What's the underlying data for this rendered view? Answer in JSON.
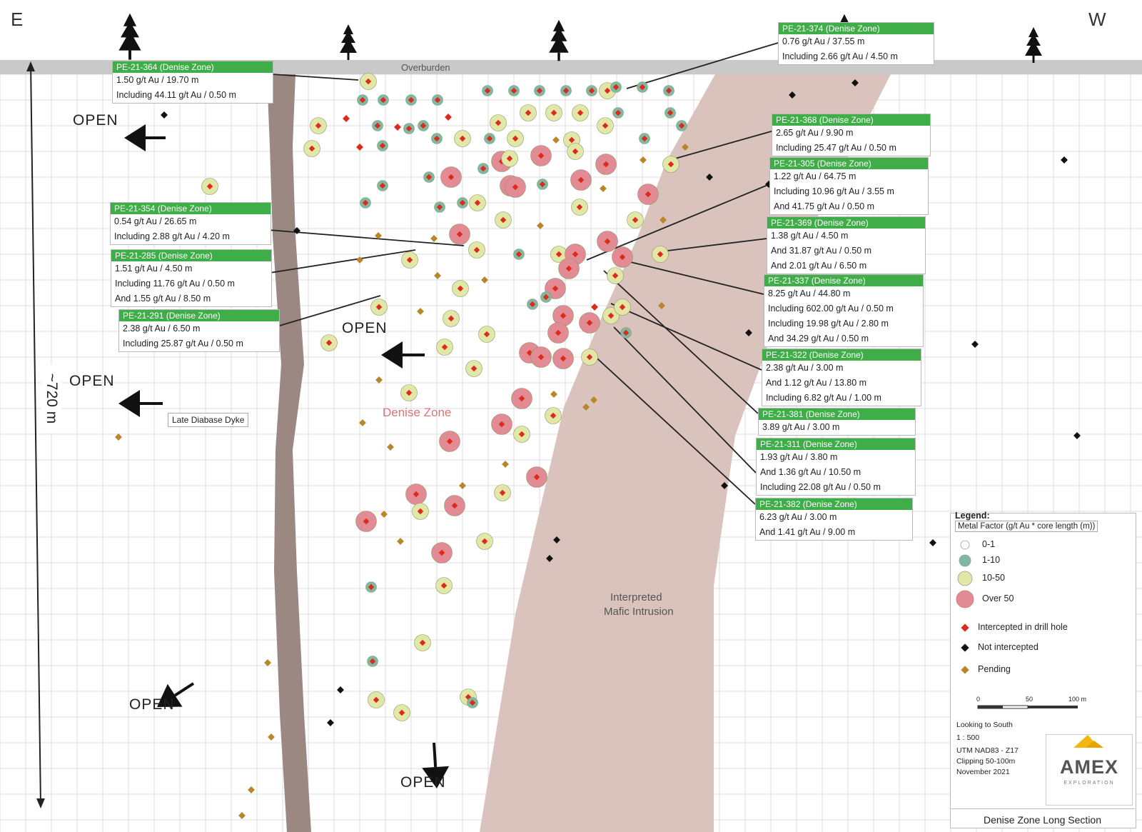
{
  "edge_labels": {
    "east": "E",
    "west": "W"
  },
  "overburden_label": "Overburden",
  "zone_label": "Denise Zone",
  "dyke_label": "Late Diabase Dyke",
  "intrusion_label": [
    "Interpreted",
    "Mafic Intrusion"
  ],
  "depth_label": "~720 m",
  "open_label": "OPEN",
  "colors": {
    "overburden": "#c9c9c9",
    "intrusion": "#d9c3bc",
    "dyke": "#9b8883",
    "header_green": "#3fae49",
    "grid": "#dcdcdc",
    "mf_0_1": "#ffffff",
    "mf_1_10": "#7fb8a3",
    "mf_10_50": "#e2e7a7",
    "mf_over_50": "#e28b94",
    "intercepted": "#dd2a1d",
    "not_intercepted": "#111111",
    "pending": "#b8872a",
    "logo_gold": "#f2b712"
  },
  "drill_holes": [
    {
      "id": "PE-21-364",
      "title": "PE-21-364 (Denise Zone)",
      "lines": [
        "1.50 g/t Au / 19.70 m",
        "Including 44.11 g/t Au / 0.50 m"
      ]
    },
    {
      "id": "PE-21-354",
      "title": "PE-21-354 (Denise Zone)",
      "lines": [
        "0.54 g/t Au / 26.65 m",
        "Including 2.88 g/t Au / 4.20 m"
      ]
    },
    {
      "id": "PE-21-285",
      "title": "PE-21-285 (Denise Zone)",
      "lines": [
        "1.51 g/t Au / 4.50 m",
        "Including 11.76 g/t Au / 0.50 m",
        "And 1.55 g/t Au / 8.50 m"
      ]
    },
    {
      "id": "PE-21-291",
      "title": "PE-21-291 (Denise Zone)",
      "lines": [
        "2.38 g/t Au / 6.50 m",
        "Including 25.87 g/t Au / 0.50 m"
      ]
    },
    {
      "id": "PE-21-374",
      "title": "PE-21-374 (Denise Zone)",
      "lines": [
        "0.76 g/t Au / 37.55 m",
        "Including 2.66 g/t Au / 4.50 m"
      ]
    },
    {
      "id": "PE-21-368",
      "title": "PE-21-368 (Denise Zone)",
      "lines": [
        "2.65 g/t Au / 9.90 m",
        "Including 25.47 g/t Au / 0.50 m"
      ]
    },
    {
      "id": "PE-21-305",
      "title": "PE-21-305 (Denise Zone)",
      "lines": [
        "1.22 g/t Au / 64.75 m",
        "Including 10.96 g/t Au / 3.55 m",
        "And 41.75 g/t Au / 0.50 m"
      ]
    },
    {
      "id": "PE-21-369",
      "title": "PE-21-369 (Denise Zone)",
      "lines": [
        "1.38 g/t Au / 4.50 m",
        "And 31.87 g/t Au / 0.50 m",
        "And 2.01 g/t Au / 6.50 m"
      ]
    },
    {
      "id": "PE-21-337",
      "title": "PE-21-337 (Denise Zone)",
      "lines": [
        "8.25 g/t Au / 44.80 m",
        "Including 602.00 g/t Au / 0.50 m",
        "Including 19.98 g/t Au / 2.80 m",
        "And 34.29 g/t Au / 0.50 m"
      ]
    },
    {
      "id": "PE-21-322",
      "title": "PE-21-322 (Denise Zone)",
      "lines": [
        "2.38 g/t Au / 3.00 m",
        "And 1.12 g/t Au / 13.80 m",
        "Including 6.82 g/t Au / 1.00 m"
      ]
    },
    {
      "id": "PE-21-381",
      "title": "PE-21-381 (Denise Zone)",
      "lines": [
        "3.89 g/t Au / 3.00 m"
      ]
    },
    {
      "id": "PE-21-311",
      "title": "PE-21-311 (Denise Zone)",
      "lines": [
        "1.93 g/t Au / 3.80 m",
        "And 1.36 g/t Au / 10.50 m",
        "Including 22.08 g/t Au / 0.50 m"
      ]
    },
    {
      "id": "PE-21-382",
      "title": "PE-21-382 (Denise Zone)",
      "lines": [
        "6.23 g/t Au / 3.00 m",
        "And 1.41 g/t Au / 9.00 m"
      ]
    }
  ],
  "legend": {
    "title": "Legend:",
    "subtitle": "Metal Factor (g/t Au * core length (m))",
    "classes": [
      {
        "label": "0-1",
        "color": "#ffffff",
        "size": "small"
      },
      {
        "label": "1-10",
        "color": "#7fb8a3",
        "size": "medium"
      },
      {
        "label": "10-50",
        "color": "#e2e7a7",
        "size": "large"
      },
      {
        "label": "Over 50",
        "color": "#e28b94",
        "size": "xlarge"
      }
    ],
    "markers": [
      {
        "label": "Intercepted in drill hole",
        "color": "#dd2a1d"
      },
      {
        "label": "Not intercepted",
        "color": "#111111"
      },
      {
        "label": "Pending",
        "color": "#b8872a"
      }
    ],
    "scale_ticks": [
      "0",
      "50",
      "100 m"
    ],
    "notes": [
      "Looking to South",
      "1 : 500",
      "UTM NAD83 - Z17",
      "Clipping 50-100m",
      "November 2021"
    ]
  },
  "logo": {
    "name": "AMEX",
    "tagline": "EXPLORATION"
  },
  "map_title": "Denise Zone Long Section"
}
